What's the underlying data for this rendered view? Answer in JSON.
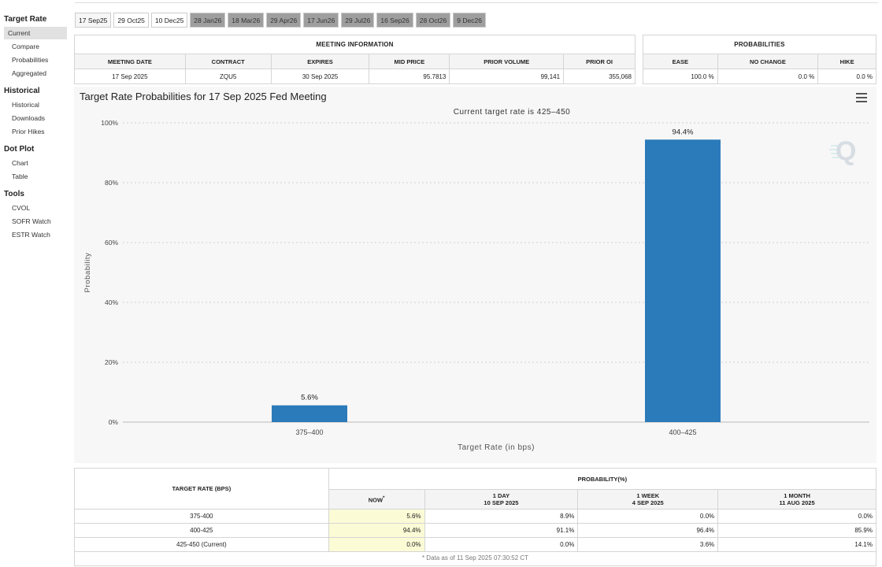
{
  "sidebar": {
    "groups": [
      {
        "title": "Target Rate",
        "items": [
          "Current",
          "Compare",
          "Probabilities",
          "Aggregated"
        ]
      },
      {
        "title": "Historical",
        "items": [
          "Historical",
          "Downloads",
          "Prior Hikes"
        ]
      },
      {
        "title": "Dot Plot",
        "items": [
          "Chart",
          "Table"
        ]
      },
      {
        "title": "Tools",
        "items": [
          "CVOL",
          "SOFR Watch",
          "ESTR Watch"
        ]
      }
    ]
  },
  "tabs": [
    "17 Sep25",
    "29 Oct25",
    "10 Dec25",
    "28 Jan26",
    "18 Mar26",
    "29 Apr26",
    "17 Jun26",
    "29 Jul26",
    "16 Sep26",
    "28 Oct26",
    "9 Dec26"
  ],
  "meeting": {
    "header": "MEETING INFORMATION",
    "columns": [
      "MEETING DATE",
      "CONTRACT",
      "EXPIRES",
      "MID PRICE",
      "PRIOR VOLUME",
      "PRIOR OI"
    ],
    "values": [
      "17 Sep 2025",
      "ZQU5",
      "30 Sep 2025",
      "95.7813",
      "99,141",
      "355,068"
    ]
  },
  "probabilities": {
    "header": "PROBABILITIES",
    "columns": [
      "EASE",
      "NO CHANGE",
      "HIKE"
    ],
    "values": [
      "100.0 %",
      "0.0 %",
      "0.0 %"
    ]
  },
  "chart": {
    "title": "Target Rate Probabilities for 17 Sep 2025 Fed Meeting"
  },
  "chart_data": {
    "type": "bar",
    "title": "Target Rate Probabilities for 17 Sep 2025 Fed Meeting",
    "subtitle": "Current target rate is 425–450",
    "categories": [
      "375–400",
      "400–425"
    ],
    "values": [
      5.6,
      94.4
    ],
    "data_labels": [
      "5.6%",
      "94.4%"
    ],
    "xlabel": "Target Rate (in bps)",
    "ylabel": "Probability",
    "ylim": [
      0,
      100
    ],
    "yticks": [
      0,
      20,
      40,
      60,
      80,
      100
    ],
    "ytick_labels": [
      "0%",
      "20%",
      "40%",
      "60%",
      "80%",
      "100%"
    ],
    "bar_color": "#2b7bba",
    "grid": true
  },
  "bottom": {
    "col1_header": "TARGET RATE (BPS)",
    "group_header": "PROBABILITY(%)",
    "sub_headers": [
      {
        "line1": "NOW",
        "line2": "",
        "mark": "*"
      },
      {
        "line1": "1 DAY",
        "line2": "10 SEP 2025",
        "mark": ""
      },
      {
        "line1": "1 WEEK",
        "line2": "4 SEP 2025",
        "mark": ""
      },
      {
        "line1": "1 MONTH",
        "line2": "11 AUG 2025",
        "mark": ""
      }
    ],
    "rows": [
      {
        "rate": "375-400",
        "vals": [
          "5.6%",
          "8.9%",
          "0.0%",
          "0.0%"
        ]
      },
      {
        "rate": "400-425",
        "vals": [
          "94.4%",
          "91.1%",
          "96.4%",
          "85.9%"
        ]
      },
      {
        "rate": "425-450 (Current)",
        "vals": [
          "0.0%",
          "0.0%",
          "3.6%",
          "14.1%"
        ]
      }
    ],
    "footnote": "* Data as of 11 Sep 2025 07:30:52 CT"
  },
  "colors": {
    "highlight": "#fbfbd6",
    "bar": "#2b7bba",
    "tab_dark": "#9e9e9e"
  }
}
